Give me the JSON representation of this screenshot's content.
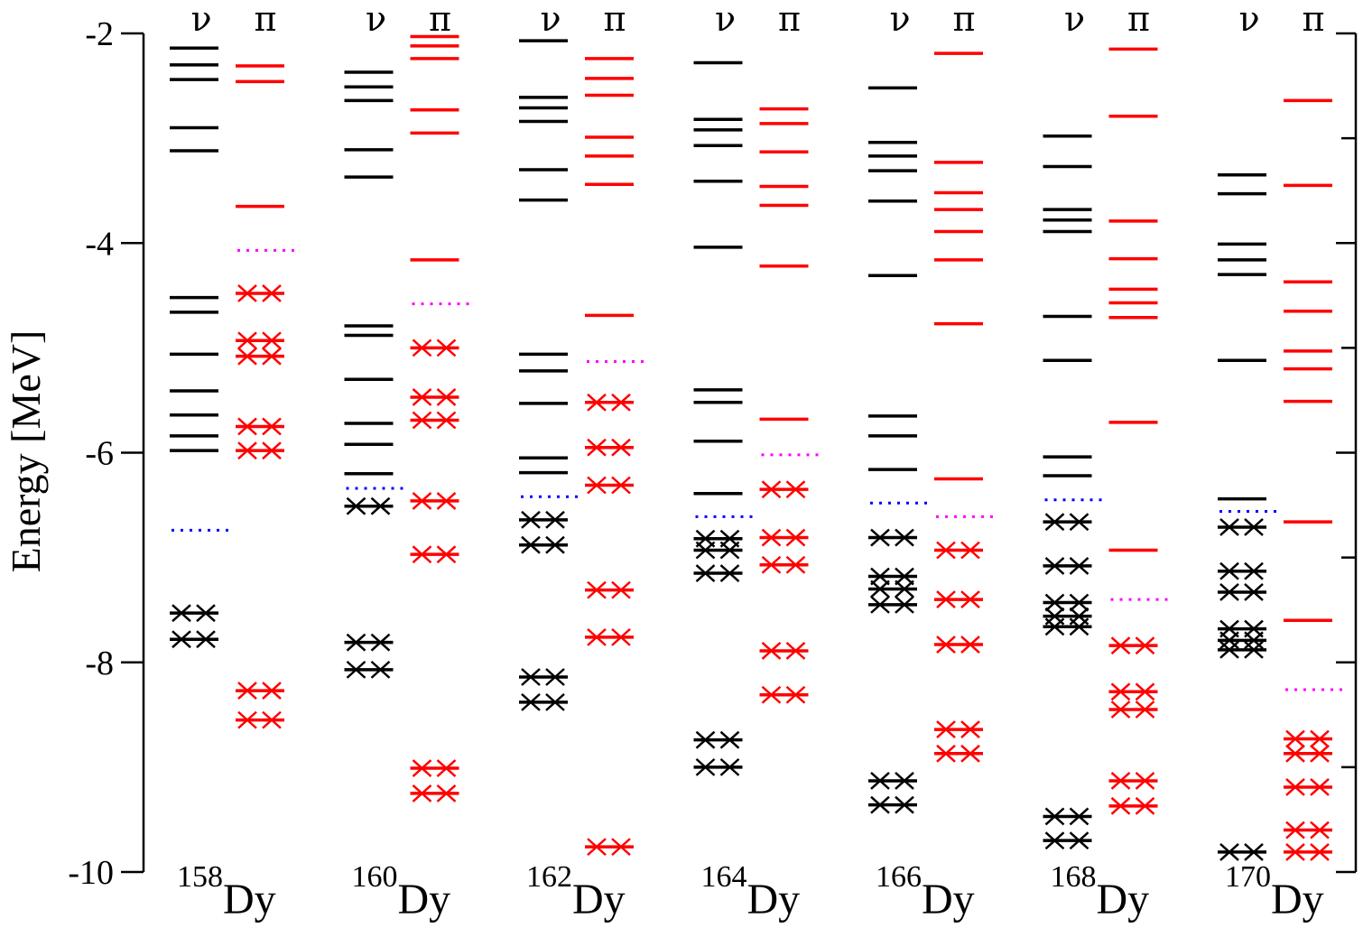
{
  "chart_data": {
    "type": "level-scheme",
    "ylabel": "Energy [MeV]",
    "ylim": [
      -10,
      -2
    ],
    "yticks": [
      -2,
      -4,
      -6,
      -8,
      -10
    ],
    "ytick_labels": [
      "-2",
      "-4",
      "-6",
      "-8",
      "-10"
    ],
    "neutron_symbol": "ν",
    "proton_symbol": "π",
    "colors": {
      "neutron": "#000000",
      "proton": "#ff0000",
      "neutron_fermi": "#0000ff",
      "proton_fermi": "#ff00ff"
    },
    "nuclei": [
      {
        "mass": "158",
        "element": "Dy",
        "neutron": {
          "fermi": -6.74,
          "occupied": [
            -7.53,
            -7.78
          ],
          "unoccupied": [
            -2.14,
            -2.3,
            -2.44,
            -2.9,
            -3.12,
            -4.52,
            -4.66,
            -5.06,
            -5.41,
            -5.64,
            -5.84,
            -5.98
          ]
        },
        "proton": {
          "fermi": -4.07,
          "occupied": [
            -4.48,
            -4.93,
            -5.08,
            -5.75,
            -5.98,
            -8.27,
            -8.55
          ],
          "unoccupied": [
            -2.31,
            -2.46,
            -3.65
          ]
        }
      },
      {
        "mass": "160",
        "element": "Dy",
        "neutron": {
          "fermi": -6.34,
          "occupied": [
            -6.51,
            -7.81,
            -8.07
          ],
          "unoccupied": [
            -2.37,
            -2.51,
            -2.64,
            -3.11,
            -3.37,
            -4.79,
            -4.88,
            -5.3,
            -5.72,
            -5.92,
            -6.2
          ]
        },
        "proton": {
          "fermi": -4.58,
          "occupied": [
            -5.0,
            -5.47,
            -5.69,
            -6.46,
            -6.97,
            -9.01,
            -9.25
          ],
          "unoccupied": [
            -2.03,
            -2.12,
            -2.24,
            -2.73,
            -2.95,
            -4.16
          ]
        }
      },
      {
        "mass": "162",
        "element": "Dy",
        "neutron": {
          "fermi": -6.42,
          "occupied": [
            -6.64,
            -6.88,
            -8.14,
            -8.38
          ],
          "unoccupied": [
            -2.07,
            -2.61,
            -2.71,
            -2.84,
            -3.3,
            -3.59,
            -5.06,
            -5.22,
            -5.53,
            -6.05,
            -6.19
          ]
        },
        "proton": {
          "fermi": -5.13,
          "occupied": [
            -5.52,
            -5.95,
            -6.31,
            -7.31,
            -7.76,
            -9.76
          ],
          "unoccupied": [
            -2.24,
            -2.43,
            -2.59,
            -2.99,
            -3.17,
            -3.44,
            -4.69
          ]
        }
      },
      {
        "mass": "164",
        "element": "Dy",
        "neutron": {
          "fermi": -6.61,
          "occupied": [
            -6.82,
            -6.93,
            -7.15,
            -8.74,
            -9.0
          ],
          "unoccupied": [
            -2.28,
            -2.82,
            -2.92,
            -3.07,
            -3.41,
            -4.04,
            -5.4,
            -5.52,
            -5.89,
            -6.39
          ]
        },
        "proton": {
          "fermi": -6.02,
          "occupied": [
            -6.35,
            -6.81,
            -7.07,
            -7.89,
            -8.31
          ],
          "unoccupied": [
            -2.72,
            -2.86,
            -3.13,
            -3.46,
            -3.64,
            -4.22,
            -5.68
          ]
        }
      },
      {
        "mass": "166",
        "element": "Dy",
        "neutron": {
          "fermi": -6.48,
          "occupied": [
            -6.81,
            -7.18,
            -7.3,
            -7.45,
            -9.13,
            -9.36
          ],
          "unoccupied": [
            -2.52,
            -3.04,
            -3.17,
            -3.31,
            -3.6,
            -4.31,
            -5.65,
            -5.84,
            -6.16
          ]
        },
        "proton": {
          "fermi": -6.61,
          "occupied": [
            -6.93,
            -7.4,
            -7.83,
            -8.64,
            -8.87
          ],
          "unoccupied": [
            -2.19,
            -3.23,
            -3.52,
            -3.68,
            -3.89,
            -4.16,
            -4.77,
            -6.25
          ]
        }
      },
      {
        "mass": "168",
        "element": "Dy",
        "neutron": {
          "fermi": -6.45,
          "occupied": [
            -6.66,
            -7.08,
            -7.43,
            -7.56,
            -7.66,
            -9.47,
            -9.7
          ],
          "unoccupied": [
            -2.98,
            -3.27,
            -3.68,
            -3.78,
            -3.89,
            -4.7,
            -5.12,
            -6.04,
            -6.22
          ]
        },
        "proton": {
          "fermi": -7.4,
          "occupied": [
            -7.84,
            -8.28,
            -8.45,
            -9.13,
            -9.37
          ],
          "unoccupied": [
            -2.15,
            -2.79,
            -3.79,
            -4.15,
            -4.44,
            -4.57,
            -4.71,
            -5.71,
            -6.93
          ]
        }
      },
      {
        "mass": "170",
        "element": "Dy",
        "neutron": {
          "fermi": -6.56,
          "occupied": [
            -6.71,
            -7.13,
            -7.33,
            -7.68,
            -7.79,
            -7.88,
            -9.81
          ],
          "unoccupied": [
            -3.35,
            -3.53,
            -4.01,
            -4.16,
            -4.3,
            -5.12,
            -6.44
          ]
        },
        "proton": {
          "fermi": -8.26,
          "occupied": [
            -8.73,
            -8.87,
            -9.19,
            -9.6,
            -9.81
          ],
          "unoccupied": [
            -2.64,
            -3.45,
            -4.37,
            -4.65,
            -5.03,
            -5.2,
            -5.51,
            -6.66,
            -7.6
          ]
        }
      }
    ]
  }
}
